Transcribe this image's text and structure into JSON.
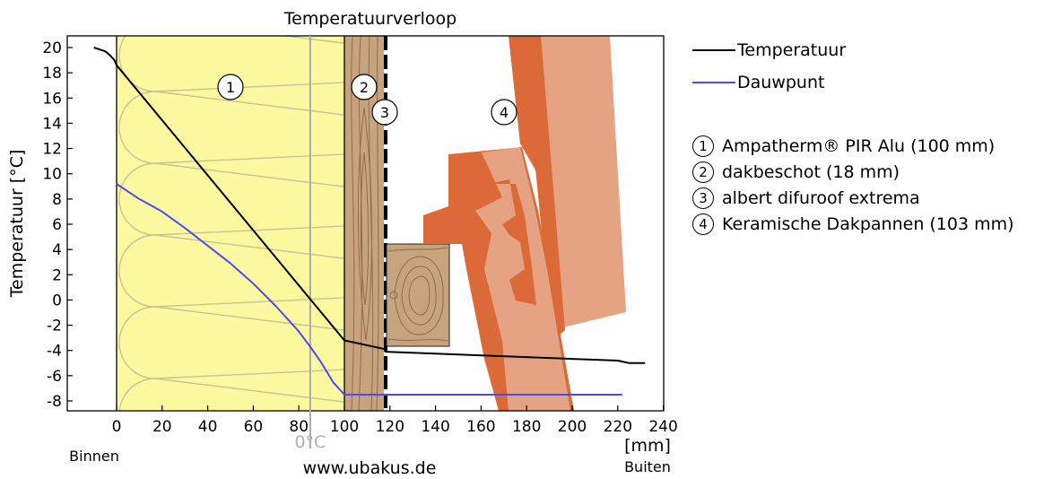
{
  "chart_data": {
    "type": "line",
    "title": "Temperatuurverloop",
    "xlabel": "[mm]",
    "ylabel": "Temperatuur [°C]",
    "xlim": [
      -12,
      240
    ],
    "ylim": [
      -8.6,
      21
    ],
    "x_ticks": [
      0,
      20,
      40,
      60,
      80,
      100,
      120,
      140,
      160,
      180,
      200,
      220,
      240
    ],
    "y_ticks": [
      20,
      18,
      16,
      14,
      12,
      10,
      8,
      6,
      4,
      2,
      0,
      -2,
      -4,
      -6,
      -8
    ],
    "left_label": "Binnen",
    "right_label": "Buiten",
    "watermark": "www.ubakus.de",
    "zero_marker": {
      "x": 85,
      "label": "0°C"
    },
    "series": [
      {
        "name": "Temperatuur",
        "color": "#000000",
        "x": [
          -10,
          -5,
          -3,
          -1,
          0,
          100,
          118,
          118,
          220,
          225,
          232
        ],
        "y": [
          20,
          19.7,
          19.4,
          19,
          18.6,
          -3.2,
          -3.9,
          -4.1,
          -4.8,
          -5.0,
          -5.0
        ]
      },
      {
        "name": "Dauwpunt",
        "color": "#4c4cf0",
        "x": [
          0,
          10,
          20,
          30,
          40,
          50,
          60,
          70,
          80,
          85,
          90,
          95,
          100,
          118,
          222
        ],
        "y": [
          9.2,
          8.0,
          7.0,
          5.7,
          4.3,
          2.9,
          1.3,
          -0.5,
          -2.5,
          -3.7,
          -5.0,
          -6.5,
          -7.5,
          -7.5,
          -7.5
        ]
      }
    ],
    "layers": [
      {
        "number": "1",
        "label": "Ampatherm® PIR Alu (100 mm)",
        "x0": 0,
        "x1": 100,
        "fill": "#fdf9a0"
      },
      {
        "number": "2",
        "label": "dakbeschot (18 mm)",
        "x0": 100,
        "x1": 118,
        "fill": "#c8a47e"
      },
      {
        "number": "3",
        "label": "albert difuroof extrema",
        "x0": 118,
        "x1": 120,
        "fill": "#000000"
      },
      {
        "number": "4",
        "label": "Keramische Dakpannen (103 mm)",
        "x0": 120,
        "x1": 223,
        "fill": "#e0703c"
      }
    ],
    "legend_position": "right",
    "grid": false
  }
}
